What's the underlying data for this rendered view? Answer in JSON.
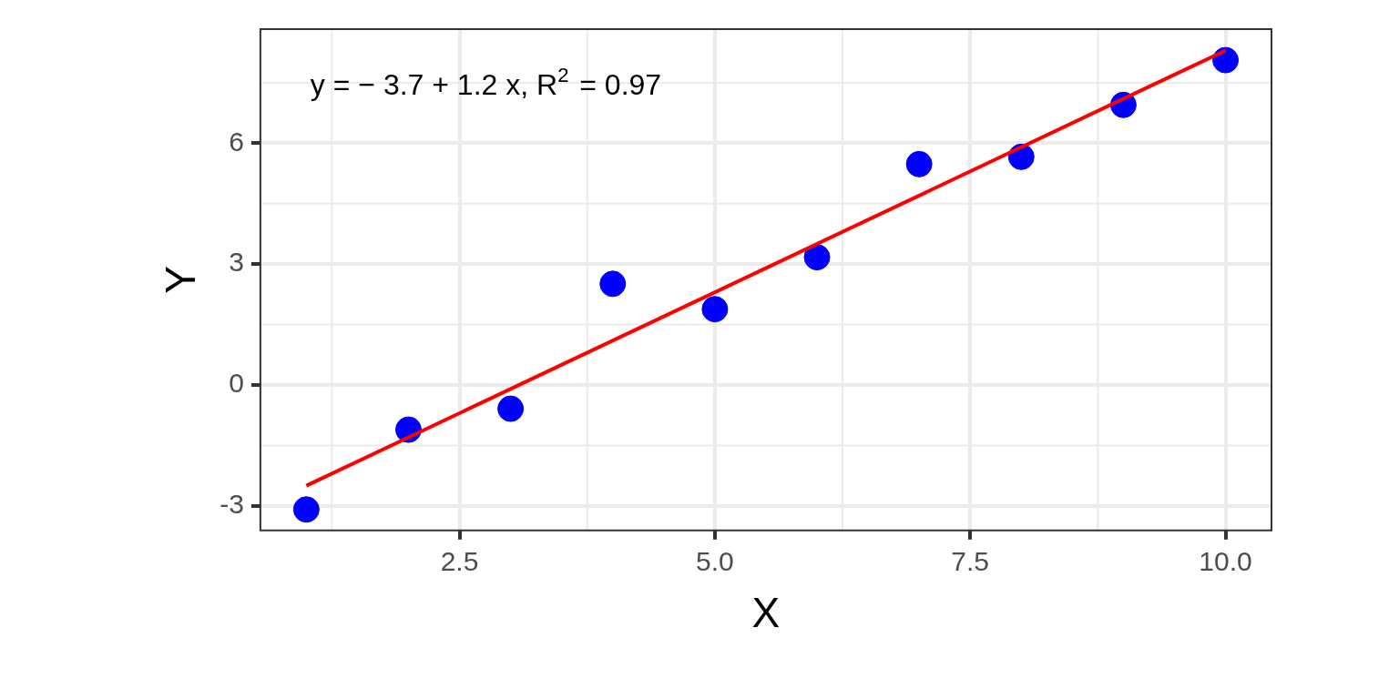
{
  "chart_data": {
    "type": "scatter",
    "xlabel": "X",
    "ylabel": "Y",
    "xlim": [
      0.55,
      10.45
    ],
    "xticks": [
      {
        "value": 2.5,
        "label": "2.5"
      },
      {
        "value": 5,
        "label": "5.0"
      },
      {
        "value": 7.5,
        "label": "7.5"
      },
      {
        "value": 10,
        "label": "10.0"
      }
    ],
    "ylim": [
      -3.61,
      8.83
    ],
    "yticks": [
      -3,
      0,
      3,
      6
    ],
    "grid": true,
    "legend": false,
    "annotations": [
      "y = − 3.7 + 1.2 x, R$^{2}$ = 0.97"
    ],
    "series": [
      {
        "type": "scatter",
        "marker": "circle",
        "color": "#0000ff",
        "x": [
          1,
          2,
          3,
          4,
          5,
          6,
          7,
          8,
          9,
          10
        ],
        "values": [
          -3.09,
          -1.11,
          -0.59,
          2.51,
          1.88,
          3.17,
          5.48,
          5.66,
          6.95,
          8.06
        ]
      },
      {
        "type": "line",
        "marker": "none",
        "color": "#ff0000",
        "x": [
          1,
          10
        ],
        "values": [
          -2.5,
          8.3
        ]
      }
    ]
  }
}
